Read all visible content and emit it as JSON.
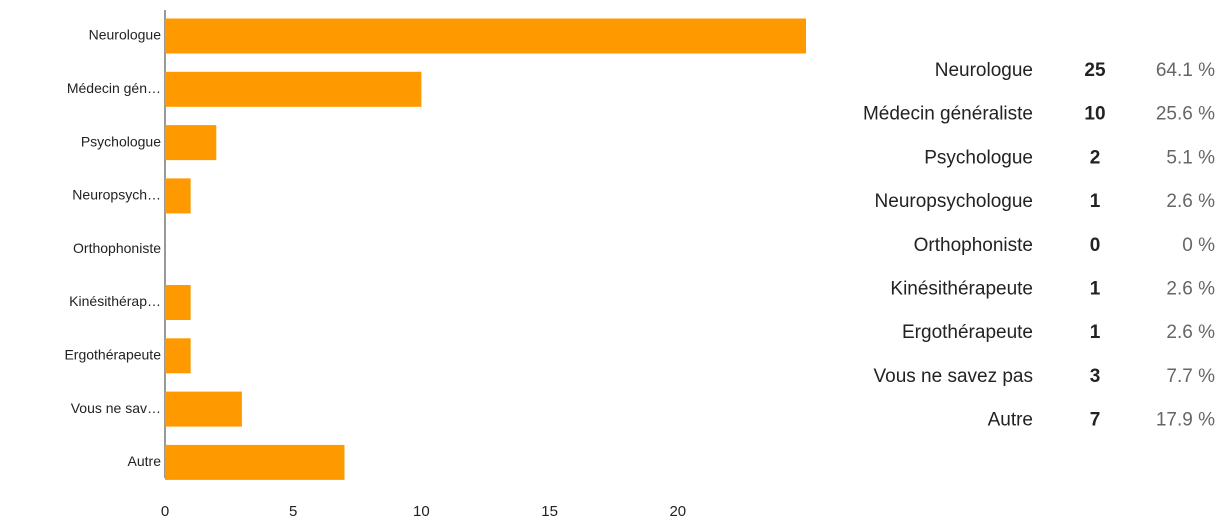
{
  "chart_data": {
    "type": "bar",
    "orientation": "horizontal",
    "categories": [
      "Neurologue",
      "Médecin gén…",
      "Psychologue",
      "Neuropsych…",
      "Orthophoniste",
      "Kinésithérap…",
      "Ergothérapeute",
      "Vous ne sav…",
      "Autre"
    ],
    "values": [
      25,
      10,
      2,
      1,
      0,
      1,
      1,
      3,
      7
    ],
    "color": "#ff9900",
    "xlim": [
      0,
      25
    ],
    "xticks": [
      0,
      5,
      10,
      15,
      20
    ],
    "grid": false
  },
  "table": {
    "names": [
      "Neurologue",
      "Médecin généraliste",
      "Psychologue",
      "Neuropsychologue",
      "Orthophoniste",
      "Kinésithérapeute",
      "Ergothérapeute",
      "Vous ne savez pas",
      "Autre"
    ],
    "percents": [
      "64.1 %",
      "25.6 %",
      "5.1 %",
      "2.6 %",
      "0 %",
      "2.6 %",
      "2.6 %",
      "7.7 %",
      "17.9 %"
    ]
  }
}
